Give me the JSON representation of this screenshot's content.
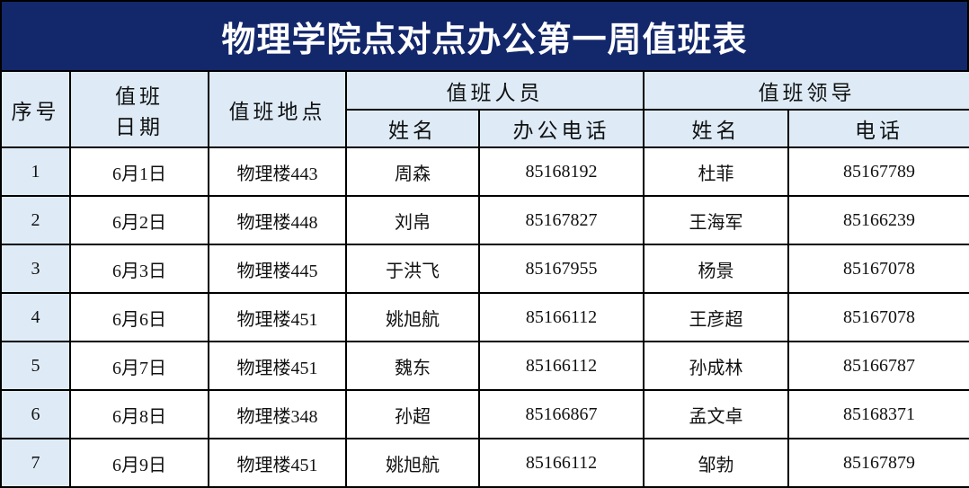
{
  "title": "物理学院点对点办公第一周值班表",
  "colors": {
    "title_bg": "#13276b",
    "header_bg": "#deebf7"
  },
  "headers": {
    "index": "序号",
    "date_line1": "值班",
    "date_line2": "日期",
    "location": "值班地点",
    "staff_group": "值班人员",
    "staff_name": "姓名",
    "staff_phone": "办公电话",
    "leader_group": "值班领导",
    "leader_name": "姓名",
    "leader_phone": "电话"
  },
  "rows": [
    {
      "index": "1",
      "date": "6月1日",
      "location": "物理楼443",
      "staff": "周森",
      "staff_phone": "85168192",
      "leader": "杜菲",
      "leader_phone": "85167789"
    },
    {
      "index": "2",
      "date": "6月2日",
      "location": "物理楼448",
      "staff": "刘帛",
      "staff_phone": "85167827",
      "leader": "王海军",
      "leader_phone": "85166239"
    },
    {
      "index": "3",
      "date": "6月3日",
      "location": "物理楼445",
      "staff": "于洪飞",
      "staff_phone": "85167955",
      "leader": "杨景",
      "leader_phone": "85167078"
    },
    {
      "index": "4",
      "date": "6月6日",
      "location": "物理楼451",
      "staff": "姚旭航",
      "staff_phone": "85166112",
      "leader": "王彦超",
      "leader_phone": "85167078"
    },
    {
      "index": "5",
      "date": "6月7日",
      "location": "物理楼451",
      "staff": "魏东",
      "staff_phone": "85166112",
      "leader": "孙成林",
      "leader_phone": "85166787"
    },
    {
      "index": "6",
      "date": "6月8日",
      "location": "物理楼348",
      "staff": "孙超",
      "staff_phone": "85166867",
      "leader": "孟文卓",
      "leader_phone": "85168371"
    },
    {
      "index": "7",
      "date": "6月9日",
      "location": "物理楼451",
      "staff": "姚旭航",
      "staff_phone": "85166112",
      "leader": "邹勃",
      "leader_phone": "85167879"
    }
  ]
}
